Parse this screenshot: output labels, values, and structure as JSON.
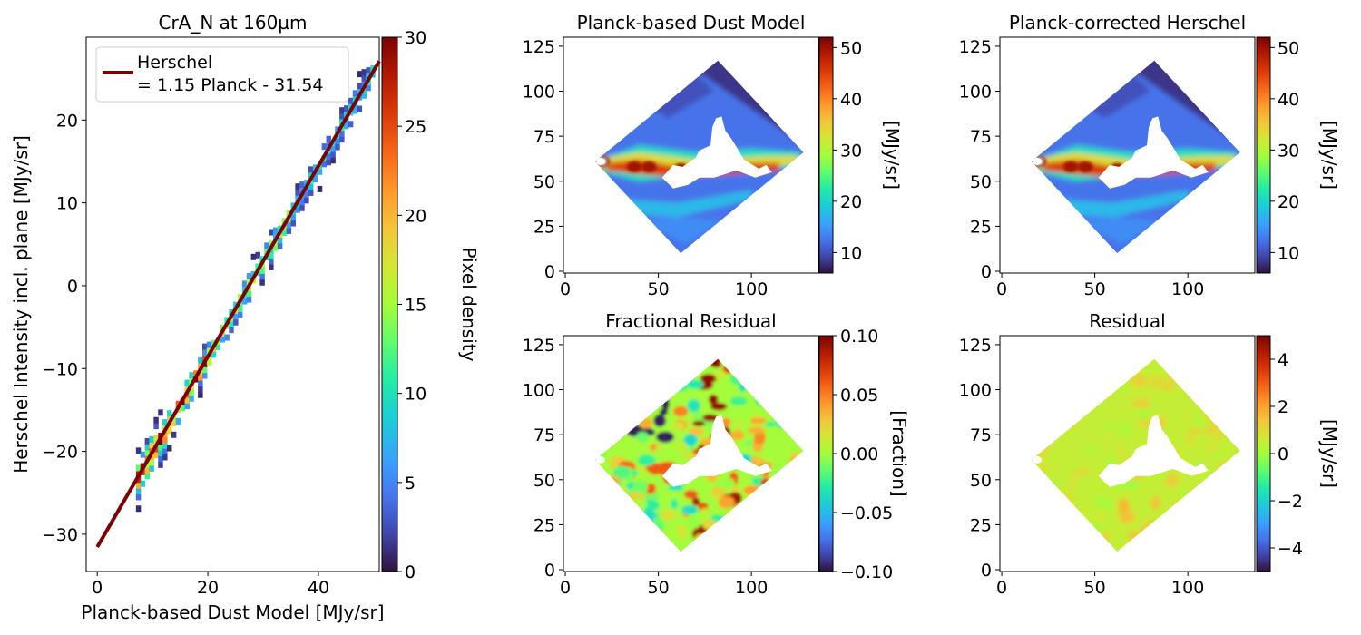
{
  "colors": {
    "fit_line": "#7a0403",
    "colormap": "turbo"
  },
  "chart_data": [
    {
      "type": "heatmap",
      "title": "CrA_N at 160µm",
      "xlabel": "Planck-based Dust Model [MJy/sr]",
      "ylabel": "Herschel Intensity incl. plane [MJy/sr]",
      "xlim": [
        -2,
        51
      ],
      "ylim": [
        -34.5,
        30
      ],
      "xticks": [
        0,
        20,
        40
      ],
      "yticks": [
        -30,
        -20,
        -10,
        0,
        10,
        20
      ],
      "density_band": {
        "x_range": [
          7,
          51
        ],
        "slope": 1.15,
        "intercept": -31.54,
        "half_width": 1.8
      },
      "fit_line": {
        "slope": 1.15,
        "intercept": -31.54,
        "x_range": [
          0,
          51
        ]
      },
      "legend": {
        "line1": "Herschel",
        "line2": "= 1.15 Planck - 31.54",
        "loc": "upper left"
      },
      "colorbar": {
        "label": "Pixel density",
        "min": 0,
        "max": 30,
        "ticks": [
          0,
          5,
          10,
          15,
          20,
          25,
          30
        ]
      }
    },
    {
      "type": "heatmap",
      "title": "Planck-based Dust Model",
      "xlim": [
        -1,
        136
      ],
      "ylim": [
        -1,
        130
      ],
      "xticks": [
        0,
        50,
        100
      ],
      "yticks": [
        0,
        25,
        50,
        75,
        100,
        125
      ],
      "colorbar": {
        "label": "[MJy/sr]",
        "min": 6,
        "max": 52,
        "ticks": [
          10,
          20,
          30,
          40,
          50
        ]
      }
    },
    {
      "type": "heatmap",
      "title": "Planck-corrected Herschel",
      "xlim": [
        -1,
        136
      ],
      "ylim": [
        -1,
        130
      ],
      "xticks": [
        0,
        50,
        100
      ],
      "yticks": [
        0,
        25,
        50,
        75,
        100,
        125
      ],
      "colorbar": {
        "label": "[MJy/sr]",
        "min": 6,
        "max": 52,
        "ticks": [
          10,
          20,
          30,
          40,
          50
        ]
      }
    },
    {
      "type": "heatmap",
      "title": "Fractional Residual",
      "xlim": [
        -1,
        136
      ],
      "ylim": [
        -1,
        130
      ],
      "xticks": [
        0,
        50,
        100
      ],
      "yticks": [
        0,
        25,
        50,
        75,
        100,
        125
      ],
      "colorbar": {
        "label": "[Fraction]",
        "min": -0.1,
        "max": 0.1,
        "ticks": [
          -0.1,
          -0.05,
          0,
          0.05,
          0.1
        ],
        "tick_labels": [
          "−0.10",
          "−0.05",
          "0.00",
          "0.05",
          "0.10"
        ]
      }
    },
    {
      "type": "heatmap",
      "title": "Residual",
      "xlim": [
        -1,
        136
      ],
      "ylim": [
        -1,
        130
      ],
      "xticks": [
        0,
        50,
        100
      ],
      "yticks": [
        0,
        25,
        50,
        75,
        100,
        125
      ],
      "colorbar": {
        "label": "[MJy/sr]",
        "min": -5,
        "max": 5,
        "ticks": [
          -4,
          -2,
          0,
          2,
          4
        ],
        "tick_labels": [
          "−4",
          "−2",
          "0",
          "2",
          "4"
        ]
      }
    }
  ]
}
